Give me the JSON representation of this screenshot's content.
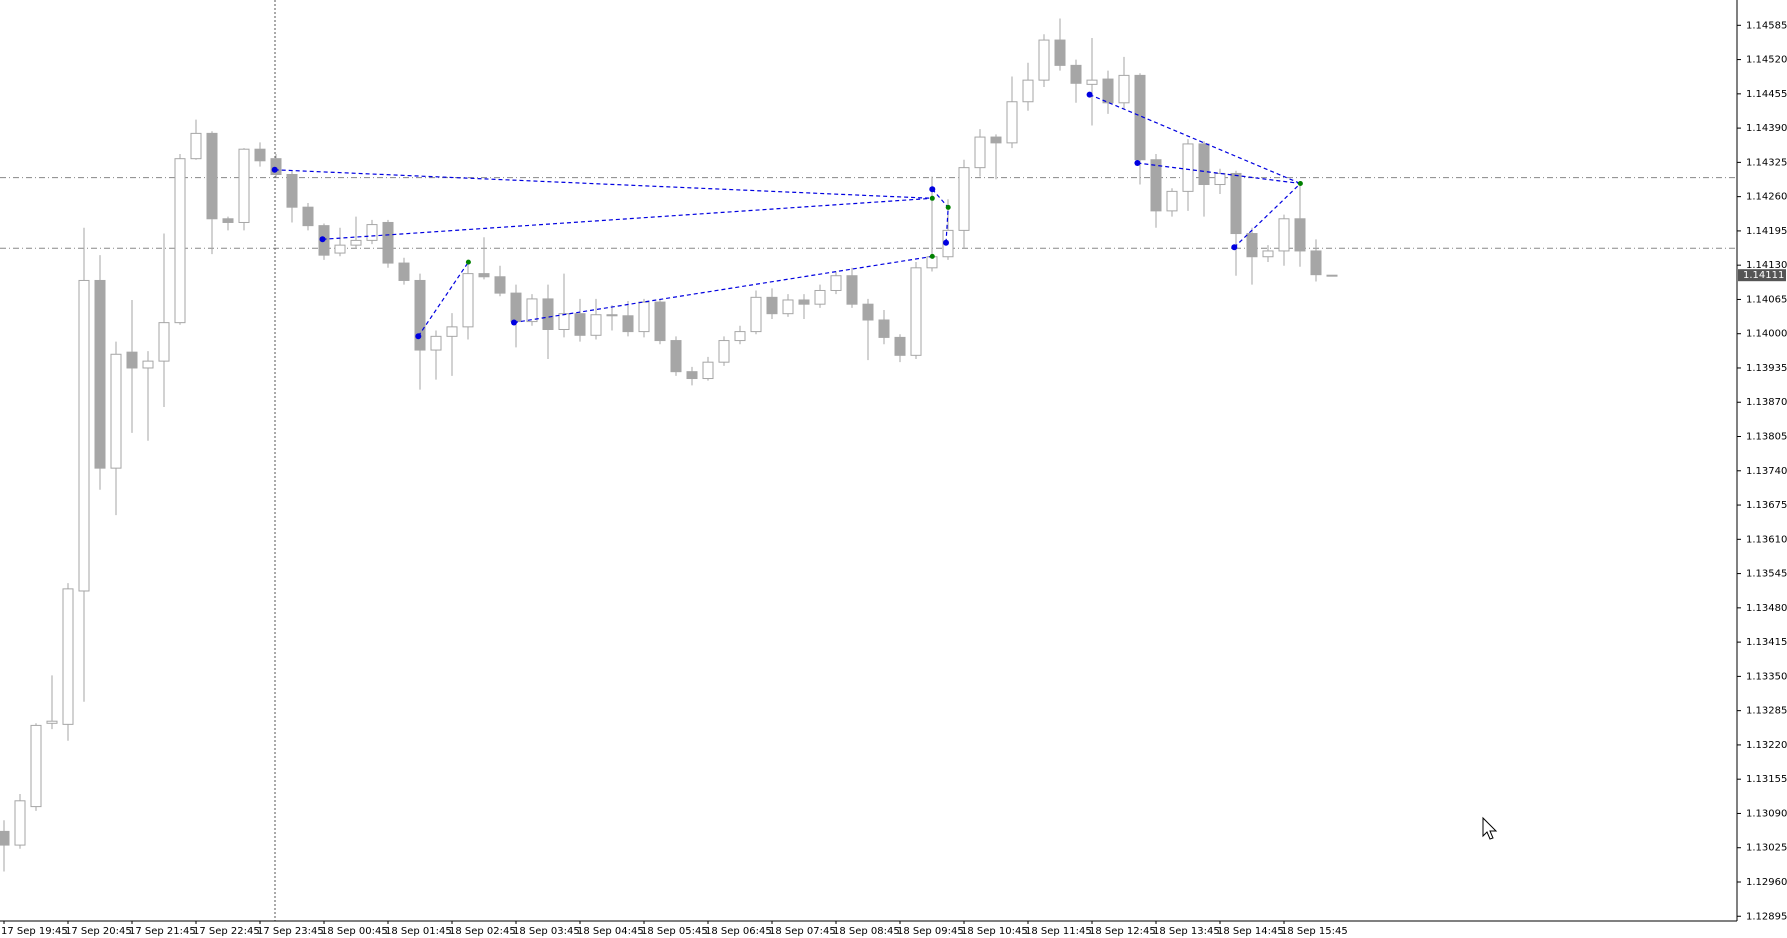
{
  "chart_data": {
    "type": "candlestick",
    "categories": [
      "17 Sep 19:45",
      null,
      null,
      null,
      "17 Sep 20:45",
      null,
      null,
      null,
      "17 Sep 21:45",
      null,
      null,
      null,
      "17 Sep 22:45",
      null,
      null,
      null,
      "17 Sep 23:45",
      null,
      null,
      null,
      "18 Sep 00:45",
      null,
      null,
      null,
      "18 Sep 01:45",
      null,
      null,
      null,
      "18 Sep 02:45",
      null,
      null,
      null,
      "18 Sep 03:45",
      null,
      null,
      null,
      "18 Sep 04:45",
      null,
      null,
      null,
      "18 Sep 05:45",
      null,
      null,
      null,
      "18 Sep 06:45",
      null,
      null,
      null,
      "18 Sep 07:45",
      null,
      null,
      null,
      "18 Sep 08:45",
      null,
      null,
      null,
      "18 Sep 09:45",
      null,
      null,
      null,
      "18 Sep 10:45",
      null,
      null,
      null,
      "18 Sep 11:45",
      null,
      null,
      null,
      "18 Sep 12:45",
      null,
      null,
      null,
      "18 Sep 13:45",
      null,
      null,
      null,
      "18 Sep 14:45",
      null,
      null,
      null,
      "18 Sep 15:45",
      null,
      null,
      null
    ],
    "open": [
      1.13056,
      1.1303,
      1.13103,
      1.13261,
      1.13259,
      1.13512,
      1.14101,
      1.13745,
      1.13965,
      1.13935,
      1.13948,
      1.14021,
      1.14332,
      1.1438,
      1.14218,
      1.14211,
      1.1435,
      1.14332,
      1.14302,
      1.1424,
      1.14205,
      1.14153,
      1.14168,
      1.14177,
      1.14211,
      1.14134,
      1.14101,
      1.13969,
      1.13995,
      1.14013,
      1.14114,
      1.14108,
      1.14077,
      1.14023,
      1.14066,
      1.14008,
      1.14038,
      1.13997,
      1.14036,
      1.14034,
      1.14004,
      1.1406,
      1.13987,
      1.13928,
      1.13915,
      1.13946,
      1.13987,
      1.14004,
      1.14069,
      1.14038,
      1.14064,
      1.14056,
      1.14082,
      1.1411,
      1.14056,
      1.14026,
      1.13993,
      1.13959,
      1.14125,
      1.14146,
      1.14196,
      1.14315,
      1.14373,
      1.14362,
      1.1444,
      1.14481,
      1.14557,
      1.14509,
      1.14473,
      1.14483,
      1.14438,
      1.1449,
      1.1433,
      1.14233,
      1.1427,
      1.1436,
      1.14283,
      1.14304,
      1.1419,
      1.14146,
      1.14157,
      1.14218,
      1.14157,
      1.14111
    ],
    "high": [
      1.13077,
      1.13127,
      1.13261,
      1.13352,
      1.13527,
      1.14201,
      1.14149,
      1.13985,
      1.14064,
      1.13967,
      1.1419,
      1.14341,
      1.14406,
      1.14384,
      1.14222,
      1.14352,
      1.14363,
      1.14341,
      1.14309,
      1.14248,
      1.14209,
      1.14201,
      1.14222,
      1.14216,
      1.14216,
      1.14144,
      1.14114,
      1.14006,
      1.14039,
      1.14131,
      1.14183,
      1.14129,
      1.14093,
      1.14075,
      1.14093,
      1.14114,
      1.14066,
      1.14066,
      1.14054,
      1.14062,
      1.14066,
      1.14066,
      1.13995,
      1.13937,
      1.13956,
      1.13995,
      1.14015,
      1.14082,
      1.14086,
      1.14075,
      1.14075,
      1.14093,
      1.14118,
      1.14125,
      1.14066,
      1.14045,
      1.13999,
      1.14136,
      1.14298,
      1.14255,
      1.1433,
      1.14388,
      1.14378,
      1.14488,
      1.14514,
      1.14568,
      1.14598,
      1.1452,
      1.14561,
      1.14499,
      1.14525,
      1.14494,
      1.14341,
      1.14276,
      1.14369,
      1.14365,
      1.14313,
      1.14309,
      1.14201,
      1.14168,
      1.14226,
      1.14287,
      1.14179,
      1.14111
    ],
    "low": [
      1.1298,
      1.13023,
      1.13095,
      1.1325,
      1.13228,
      1.13302,
      1.13704,
      1.13656,
      1.13812,
      1.13797,
      1.13861,
      1.14017,
      1.1433,
      1.14151,
      1.14196,
      1.14196,
      1.14317,
      1.14296,
      1.14211,
      1.14196,
      1.1414,
      1.14147,
      1.14162,
      1.1417,
      1.14125,
      1.14093,
      1.13894,
      1.13913,
      1.1392,
      1.13989,
      1.14103,
      1.14071,
      1.13974,
      1.14015,
      1.13952,
      1.13993,
      1.13985,
      1.13989,
      1.14006,
      1.13995,
      1.13993,
      1.1398,
      1.1392,
      1.13902,
      1.13911,
      1.13939,
      1.1398,
      1.13999,
      1.14028,
      1.14032,
      1.14028,
      1.14049,
      1.14075,
      1.14049,
      1.1395,
      1.1398,
      1.13946,
      1.13952,
      1.14118,
      1.1414,
      1.14162,
      1.14298,
      1.14293,
      1.14352,
      1.14423,
      1.14468,
      1.14499,
      1.14438,
      1.14395,
      1.14417,
      1.14427,
      1.14283,
      1.14201,
      1.14222,
      1.14233,
      1.14222,
      1.14265,
      1.1411,
      1.14093,
      1.14136,
      1.14129,
      1.14127,
      1.14099,
      1.14111
    ],
    "close": [
      1.1303,
      1.13114,
      1.13257,
      1.13265,
      1.13516,
      1.14101,
      1.13745,
      1.13961,
      1.13935,
      1.13948,
      1.14021,
      1.14332,
      1.1438,
      1.14218,
      1.14211,
      1.1435,
      1.14328,
      1.14302,
      1.1424,
      1.14205,
      1.14149,
      1.14168,
      1.14177,
      1.14207,
      1.14134,
      1.14101,
      1.13969,
      1.13995,
      1.14013,
      1.14114,
      1.14108,
      1.14077,
      1.14023,
      1.14066,
      1.14008,
      1.14038,
      1.13997,
      1.14036,
      1.14034,
      1.14004,
      1.1406,
      1.13987,
      1.13928,
      1.13915,
      1.13946,
      1.13987,
      1.14004,
      1.14069,
      1.14038,
      1.14064,
      1.14056,
      1.14082,
      1.1411,
      1.14056,
      1.14026,
      1.13993,
      1.13959,
      1.14125,
      1.14146,
      1.14196,
      1.14315,
      1.14373,
      1.14362,
      1.1444,
      1.14481,
      1.14557,
      1.14509,
      1.14475,
      1.14481,
      1.14438,
      1.1449,
      1.1433,
      1.14233,
      1.1427,
      1.1436,
      1.14283,
      1.14304,
      1.1419,
      1.14146,
      1.14157,
      1.14218,
      1.14157,
      1.14112,
      1.14111
    ],
    "up_color": "#ffffff",
    "down_color": "#a6a6a6",
    "wick_color": "#a6a6a6",
    "ylim": [
      1.12886,
      1.14633
    ],
    "yticks": [
      1.14585,
      {
        "value": 1.1452,
        "label": "1.14520"
      },
      1.14455,
      {
        "value": 1.1439,
        "label": "1.14390"
      },
      1.14325,
      {
        "value": 1.1426,
        "label": "1.14260"
      },
      1.14195,
      {
        "value": 1.1413,
        "label": "1.14130"
      },
      1.14065,
      {
        "value": 1.14,
        "label": "1.14000"
      },
      1.13935,
      {
        "value": 1.1387,
        "label": "1.13870"
      },
      1.13805,
      {
        "value": 1.1374,
        "label": "1.13740"
      },
      1.13675,
      {
        "value": 1.1361,
        "label": "1.13610"
      },
      1.13545,
      {
        "value": 1.1348,
        "label": "1.13480"
      },
      1.13415,
      {
        "value": 1.1335,
        "label": "1.13350"
      },
      1.13285,
      {
        "value": 1.1322,
        "label": "1.13220"
      },
      1.13155,
      {
        "value": 1.1309,
        "label": "1.13090"
      },
      1.13025,
      {
        "value": 1.1296,
        "label": "1.12960"
      },
      1.12895
    ],
    "levels": [
      1.14296,
      1.14162
    ],
    "current_price": 1.14111
  }
}
